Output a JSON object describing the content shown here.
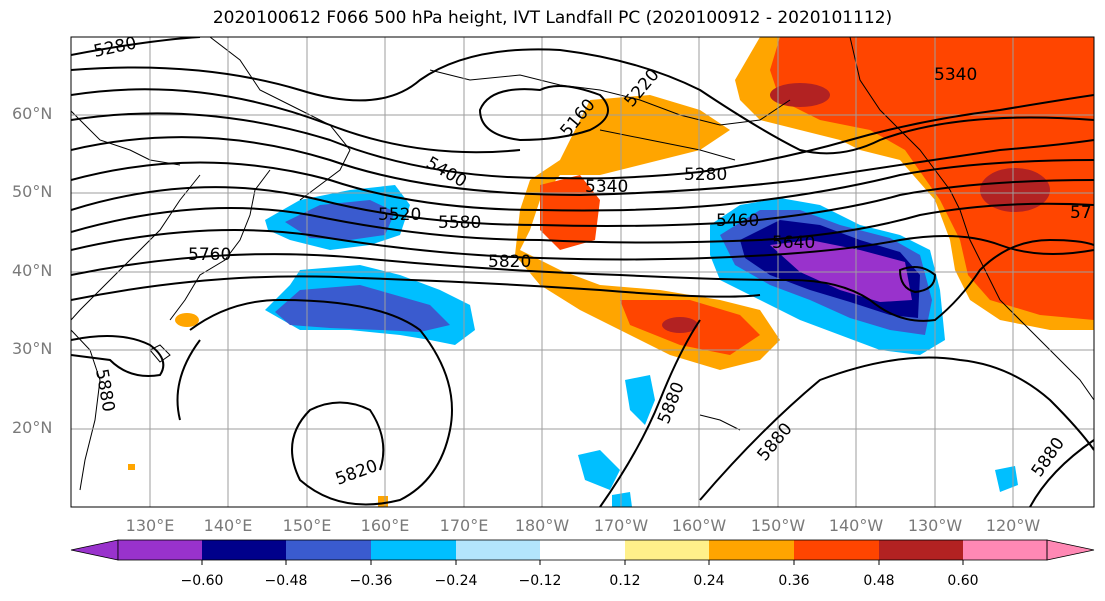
{
  "title": "2020100612 F066 500 hPa height, IVT Landfall PC (2020100912 - 2020101112)",
  "lat_labels": [
    "60°N",
    "50°N",
    "40°N",
    "30°N",
    "20°N"
  ],
  "lon_labels": [
    "130°E",
    "140°E",
    "150°E",
    "160°E",
    "170°E",
    "180°W",
    "170°W",
    "160°W",
    "150°W",
    "140°W",
    "130°W",
    "120°W"
  ],
  "contour_labels": [
    "5280",
    "5160",
    "5220",
    "5340",
    "5280",
    "5400",
    "5340",
    "5520",
    "5580",
    "5460",
    "5640",
    "5760",
    "5820",
    "5880",
    "5880",
    "5880",
    "5820",
    "5880",
    "5340",
    "57"
  ],
  "colorbar": {
    "ticks": [
      "−0.60",
      "−0.48",
      "−0.36",
      "−0.24",
      "−0.12",
      "0.12",
      "0.24",
      "0.36",
      "0.48",
      "0.60"
    ],
    "colors": [
      "#9932cc",
      "#00008b",
      "#3a5bcf",
      "#00bfff",
      "#b3e5fc",
      "#ffffff",
      "#fff08a",
      "#ffa500",
      "#ff4500",
      "#b22222",
      "#ff88b4"
    ]
  }
}
